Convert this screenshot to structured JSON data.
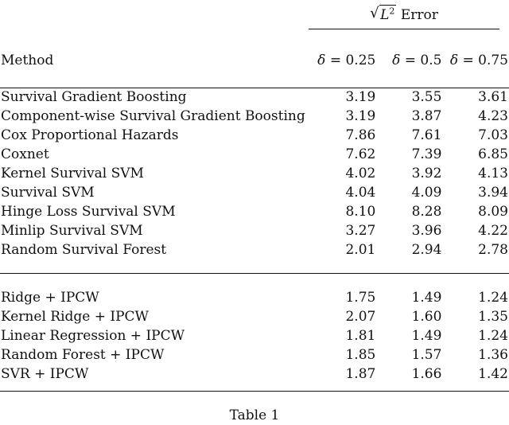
{
  "table": {
    "group_header": {
      "symbol": "L",
      "superscript": "2",
      "label": "Error"
    },
    "method_header": "Method",
    "delta_symbol": "δ",
    "columns": [
      "= 0.25",
      "= 0.5",
      "= 0.75"
    ],
    "section1": [
      {
        "method": "Survival Gradient Boosting",
        "values": [
          "3.19",
          "3.55",
          "3.61"
        ],
        "bold": [
          false,
          false,
          false
        ]
      },
      {
        "method": "Component-wise Survival Gradient Boosting",
        "values": [
          "3.19",
          "3.87",
          "4.23"
        ],
        "bold": [
          false,
          false,
          false
        ]
      },
      {
        "method": "Cox Proportional Hazards",
        "values": [
          "7.86",
          "7.61",
          "7.03"
        ],
        "bold": [
          false,
          false,
          false
        ]
      },
      {
        "method": "Coxnet",
        "values": [
          "7.62",
          "7.39",
          "6.85"
        ],
        "bold": [
          false,
          false,
          false
        ]
      },
      {
        "method": "Kernel Survival SVM",
        "values": [
          "4.02",
          "3.92",
          "4.13"
        ],
        "bold": [
          false,
          false,
          false
        ]
      },
      {
        "method": "Survival SVM",
        "values": [
          "4.04",
          "4.09",
          "3.94"
        ],
        "bold": [
          false,
          false,
          false
        ]
      },
      {
        "method": "Hinge Loss Survival SVM",
        "values": [
          "8.10",
          "8.28",
          "8.09"
        ],
        "bold": [
          false,
          false,
          false
        ]
      },
      {
        "method": "Minlip Survival SVM",
        "values": [
          "3.27",
          "3.96",
          "4.22"
        ],
        "bold": [
          false,
          false,
          false
        ]
      },
      {
        "method": "Random Survival Forest",
        "values": [
          "2.01",
          "2.94",
          "2.78"
        ],
        "bold": [
          false,
          false,
          false
        ]
      }
    ],
    "section2": [
      {
        "method": "Ridge + IPCW",
        "values": [
          "1.75",
          "1.49",
          "1.24"
        ],
        "bold": [
          true,
          true,
          true
        ]
      },
      {
        "method": "Kernel Ridge + IPCW",
        "values": [
          "2.07",
          "1.60",
          "1.35"
        ],
        "bold": [
          false,
          false,
          false
        ]
      },
      {
        "method": "Linear Regression + IPCW",
        "values": [
          "1.81",
          "1.49",
          "1.24"
        ],
        "bold": [
          false,
          true,
          true
        ]
      },
      {
        "method": "Random Forest + IPCW",
        "values": [
          "1.85",
          "1.57",
          "1.36"
        ],
        "bold": [
          false,
          false,
          false
        ]
      },
      {
        "method": "SVR + IPCW",
        "values": [
          "1.87",
          "1.66",
          "1.42"
        ],
        "bold": [
          false,
          false,
          false
        ]
      }
    ]
  },
  "caption": "Table 1"
}
